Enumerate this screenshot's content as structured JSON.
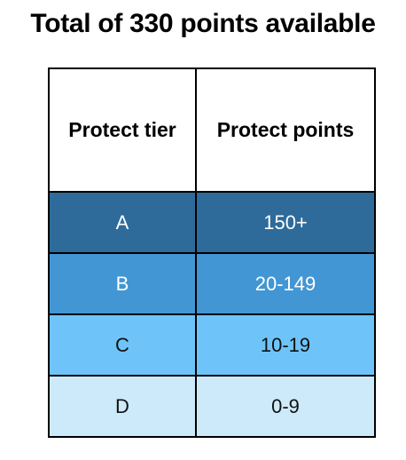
{
  "title": "Total of 330 points available",
  "table": {
    "headers": [
      "Protect tier",
      "Protect points"
    ],
    "rows": [
      {
        "tier": "A",
        "points": "150+"
      },
      {
        "tier": "B",
        "points": "20-149"
      },
      {
        "tier": "C",
        "points": "10-19"
      },
      {
        "tier": "D",
        "points": "0-9"
      }
    ]
  },
  "colors": {
    "tier_a": "#2e6b9b",
    "tier_b": "#4296d3",
    "tier_c": "#6ec4f8",
    "tier_d": "#cceaf9",
    "border": "#000000"
  }
}
